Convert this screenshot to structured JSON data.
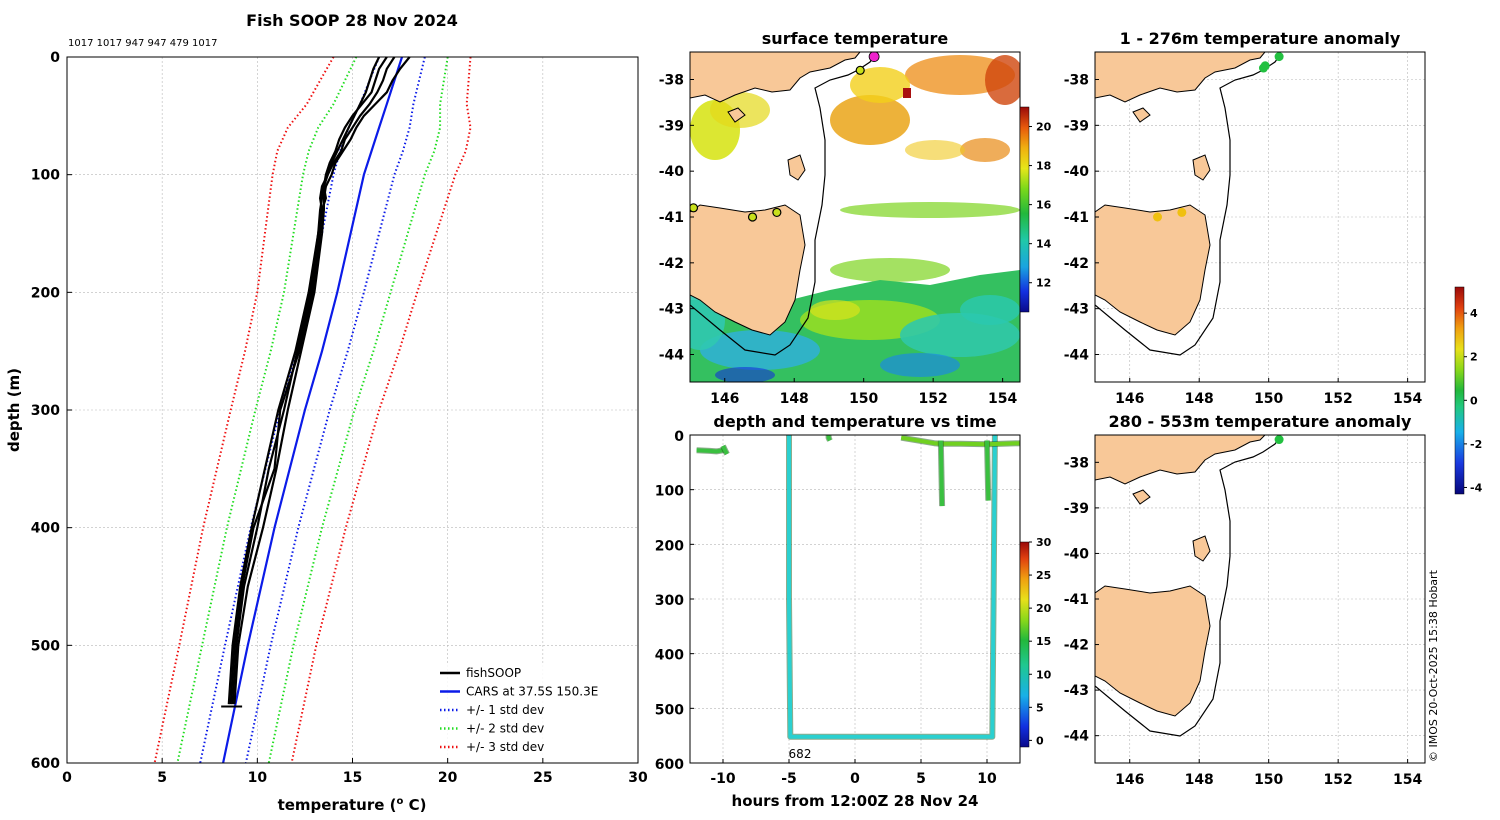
{
  "figure": {
    "copyright": "© IMOS 20-Oct-2025 15:38 Hobart"
  },
  "colors": {
    "fishsoop": "#000000",
    "cars": "#0b1be8",
    "std1": "#0b1be8",
    "std2": "#22dd22",
    "std3": "#ee1111",
    "land": "#f8c898",
    "highlight": "#ee22cc"
  },
  "chart_data": [
    {
      "id": "profile",
      "type": "line",
      "title": "Fish SOOP 28 Nov 2024",
      "subtitle": "1017 1017 947 947 479 1017",
      "xlabel": "temperature (o C)",
      "xlabel_main": "temperature (",
      "xlabel_sup": "o",
      "xlabel_end": " C)",
      "ylabel": "depth (m)",
      "xlim": [
        0,
        30
      ],
      "ylim": [
        600,
        0
      ],
      "xticks": [
        0,
        5,
        10,
        15,
        20,
        25,
        30
      ],
      "yticks": [
        0,
        100,
        200,
        300,
        400,
        500,
        600
      ],
      "legend_position": "bottom-right",
      "legend": [
        {
          "label": "fishSOOP",
          "color": "#000000",
          "style": "solid"
        },
        {
          "label": "CARS at 37.5S 150.3E",
          "color": "#0b1be8",
          "style": "solid"
        },
        {
          "label": "+/- 1 std dev",
          "color": "#0b1be8",
          "style": "dotted"
        },
        {
          "label": "+/- 2 std dev",
          "color": "#22dd22",
          "style": "dotted"
        },
        {
          "label": "+/- 3 std dev",
          "color": "#ee1111",
          "style": "dotted"
        }
      ],
      "depths": [
        0,
        20,
        40,
        60,
        80,
        100,
        150,
        200,
        250,
        300,
        400,
        500,
        600
      ],
      "cars_mean": [
        17.6,
        17.2,
        16.8,
        16.4,
        16.0,
        15.6,
        14.9,
        14.2,
        13.4,
        12.5,
        10.9,
        9.5,
        8.2
      ],
      "cars_std": [
        1.2,
        1.3,
        1.4,
        1.6,
        1.65,
        1.6,
        1.5,
        1.4,
        1.35,
        1.3,
        1.25,
        1.2,
        1.2
      ],
      "fishsoop_profiles": [
        {
          "depth": [
            0,
            10,
            20,
            30,
            40,
            50,
            60,
            70,
            80,
            90,
            100,
            110,
            120,
            130,
            150,
            200,
            250,
            300,
            350,
            400,
            450,
            500,
            550
          ],
          "temp": [
            16.8,
            16.4,
            16.2,
            16.0,
            15.5,
            15.0,
            14.6,
            14.3,
            14.1,
            13.8,
            13.6,
            13.5,
            13.6,
            13.4,
            13.2,
            12.8,
            12.1,
            11.4,
            10.6,
            10.0,
            9.3,
            8.9,
            8.7
          ]
        },
        {
          "depth": [
            0,
            10,
            20,
            30,
            40,
            50,
            60,
            70,
            80,
            90,
            100,
            110,
            120,
            130,
            150,
            200,
            250,
            300,
            350,
            400,
            450,
            500,
            550
          ],
          "temp": [
            17.2,
            16.8,
            16.6,
            16.3,
            15.9,
            15.4,
            15.0,
            14.6,
            14.4,
            14.0,
            13.7,
            13.4,
            13.3,
            13.4,
            13.3,
            12.9,
            12.2,
            11.2,
            10.9,
            9.8,
            9.2,
            8.8,
            8.6
          ]
        },
        {
          "depth": [
            0,
            10,
            20,
            30,
            40,
            50,
            60,
            70,
            80,
            90,
            100,
            110,
            120,
            130,
            150,
            200,
            250,
            300,
            350,
            400,
            450,
            500,
            550
          ],
          "temp": [
            18.0,
            17.5,
            17.1,
            16.8,
            16.2,
            15.6,
            15.2,
            14.9,
            14.5,
            14.1,
            13.9,
            13.6,
            13.5,
            13.5,
            13.4,
            13.0,
            12.3,
            11.6,
            11.0,
            10.3,
            9.5,
            9.0,
            8.8
          ]
        },
        {
          "depth": [
            0,
            10,
            20,
            30,
            40,
            50,
            60,
            70,
            80,
            90,
            100,
            110,
            120,
            130,
            150,
            200,
            250,
            300,
            350,
            400,
            450,
            500,
            550
          ],
          "temp": [
            16.4,
            16.1,
            15.9,
            15.7,
            15.4,
            15.1,
            14.8,
            14.5,
            14.2,
            13.9,
            13.7,
            13.5,
            13.4,
            13.3,
            13.2,
            12.7,
            12.0,
            11.1,
            10.4,
            9.7,
            9.1,
            8.7,
            8.5
          ]
        }
      ]
    },
    {
      "id": "surface_map",
      "type": "heatmap",
      "title": "surface temperature",
      "xlim": [
        145,
        154.5
      ],
      "ylim": [
        -44.6,
        -37.4
      ],
      "xticks": [
        146,
        148,
        150,
        152,
        154
      ],
      "yticks": [
        -38,
        -39,
        -40,
        -41,
        -42,
        -43,
        -44
      ],
      "colorbar": {
        "min": 10.5,
        "max": 21,
        "ticks": [
          12,
          14,
          16,
          18,
          20
        ]
      },
      "markers": [
        {
          "lon": 150.3,
          "lat": -37.5,
          "role": "current"
        },
        {
          "lon": 149.9,
          "lat": -37.8
        },
        {
          "lon": 146.8,
          "lat": -41.0
        },
        {
          "lon": 147.5,
          "lat": -40.9
        },
        {
          "lon": 145.1,
          "lat": -40.8
        }
      ]
    },
    {
      "id": "time_series",
      "type": "scatter",
      "title": "depth and temperature vs time",
      "xlabel": "hours from 12:00Z 28 Nov 24",
      "xlim": [
        -12.5,
        12.5
      ],
      "ylim": [
        600,
        0
      ],
      "xticks": [
        -10,
        -5,
        0,
        5,
        10
      ],
      "yticks": [
        0,
        100,
        200,
        300,
        400,
        500,
        600
      ],
      "annotation": "682",
      "colorbar": {
        "min": -1,
        "max": 30,
        "ticks": [
          0,
          5,
          10,
          15,
          20,
          25,
          30
        ]
      },
      "segments": [
        {
          "t": [
            -12,
            -11,
            -10.5,
            -10,
            -9.8
          ],
          "d": [
            28,
            29,
            30,
            28,
            27
          ],
          "temp": 16
        },
        {
          "t": [
            -10,
            -9.8,
            -9.7
          ],
          "d": [
            20,
            30,
            35
          ],
          "temp": 16
        },
        {
          "t": [
            -5,
            -5,
            -4.9,
            10.4,
            10.5,
            10.6
          ],
          "d": [
            0,
            300,
            552,
            552,
            300,
            0
          ],
          "temp": 9
        },
        {
          "t": [
            -2,
            -2,
            -1.9
          ],
          "d": [
            0,
            5,
            10
          ],
          "temp": 16
        },
        {
          "t": [
            3.5,
            6,
            6.5,
            8,
            10,
            12.5
          ],
          "d": [
            5,
            15,
            16,
            16,
            17,
            15
          ],
          "temp": 17
        },
        {
          "t": [
            6.5,
            6.6
          ],
          "d": [
            10,
            130
          ],
          "temp": 16
        },
        {
          "t": [
            10.0,
            10.1
          ],
          "d": [
            10,
            120
          ],
          "temp": 16
        }
      ]
    },
    {
      "id": "anom_upper",
      "type": "scatter",
      "title": "1 - 276m temperature anomaly",
      "xlim": [
        145,
        154.5
      ],
      "ylim": [
        -44.6,
        -37.4
      ],
      "xticks": [
        146,
        148,
        150,
        152,
        154
      ],
      "yticks": [
        -38,
        -39,
        -40,
        -41,
        -42,
        -43,
        -44
      ],
      "points": [
        {
          "lon": 150.3,
          "lat": -37.5,
          "anom": 0.2
        },
        {
          "lon": 149.9,
          "lat": -37.7,
          "anom": 0.0
        },
        {
          "lon": 149.85,
          "lat": -37.75,
          "anom": 0.3
        },
        {
          "lon": 147.5,
          "lat": -40.9,
          "anom": 2.0
        },
        {
          "lon": 146.8,
          "lat": -41.0,
          "anom": 2.1
        }
      ]
    },
    {
      "id": "anom_lower",
      "type": "scatter",
      "title": "280 - 553m temperature anomaly",
      "xlim": [
        145,
        154.5
      ],
      "ylim": [
        -44.6,
        -37.4
      ],
      "xticks": [
        146,
        148,
        150,
        152,
        154
      ],
      "yticks": [
        -38,
        -39,
        -40,
        -41,
        -42,
        -43,
        -44
      ],
      "points": [
        {
          "lon": 150.3,
          "lat": -37.5,
          "anom": 0.1
        }
      ],
      "colorbar": {
        "min": -4.3,
        "max": 5.2,
        "ticks": [
          4,
          2,
          0,
          -2,
          -4
        ]
      }
    }
  ]
}
